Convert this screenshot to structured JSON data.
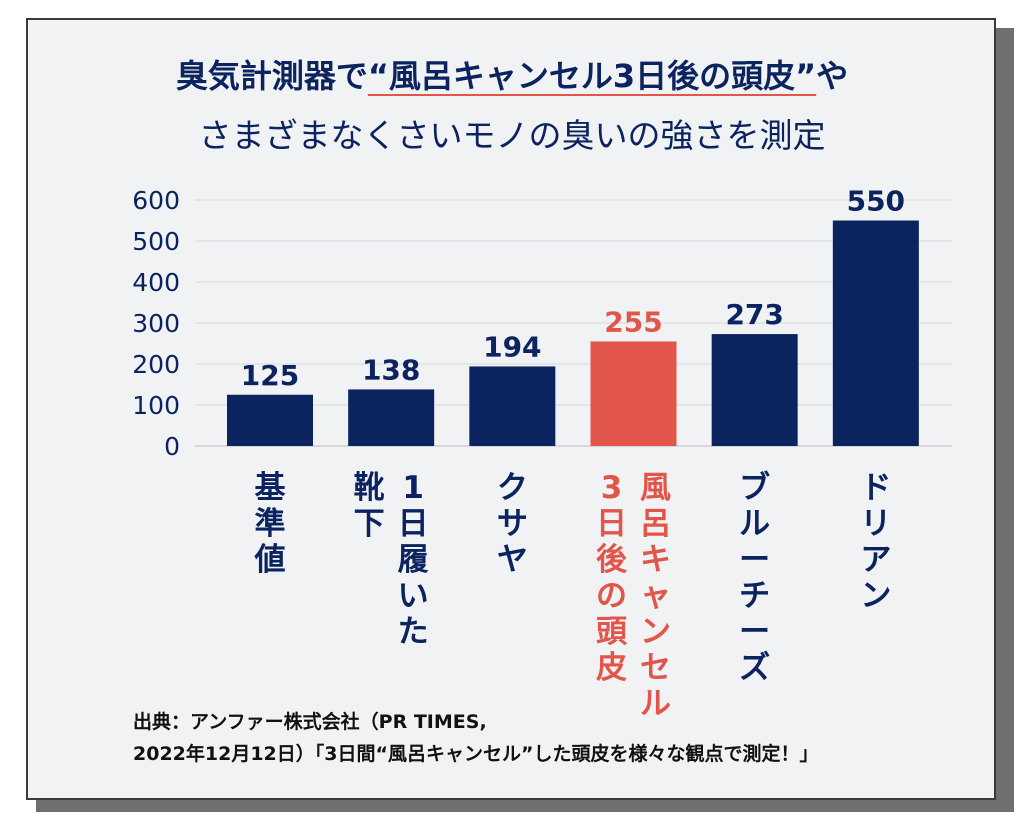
{
  "title": {
    "line1_pre": "臭気計測器で",
    "line1_quote": "“風呂キャンセル3日後の頭皮”",
    "line1_post": "や",
    "line2": "さまざまなくさいモノの臭いの強さを測定"
  },
  "source": {
    "line1": "出典：アンファー株式会社（PR TIMES,",
    "line2": "2022年12月12日）「3日間“風呂キャンセル”した頭皮を様々な観点で測定！」"
  },
  "colors": {
    "bar": "#0b2460",
    "highlight": "#e2554a",
    "text": "#0b2460"
  },
  "chart_data": {
    "type": "bar",
    "categories": [
      "基準値",
      "1日履いた靴下",
      "クサヤ",
      "風呂キャンセル3日後の頭皮",
      "ブルーチーズ",
      "ドリアン"
    ],
    "category_columns": [
      [
        "基準値"
      ],
      [
        "1日履いた",
        "靴下"
      ],
      [
        "クサヤ"
      ],
      [
        "風呂キャンセル",
        "3日後の頭皮"
      ],
      [
        "ブルーチーズ"
      ],
      [
        "ドリアン"
      ]
    ],
    "values": [
      125,
      138,
      194,
      255,
      273,
      550
    ],
    "highlight_index": 3,
    "ylim": [
      0,
      600
    ],
    "yticks": [
      0,
      100,
      200,
      300,
      400,
      500,
      600
    ],
    "grid": true
  }
}
